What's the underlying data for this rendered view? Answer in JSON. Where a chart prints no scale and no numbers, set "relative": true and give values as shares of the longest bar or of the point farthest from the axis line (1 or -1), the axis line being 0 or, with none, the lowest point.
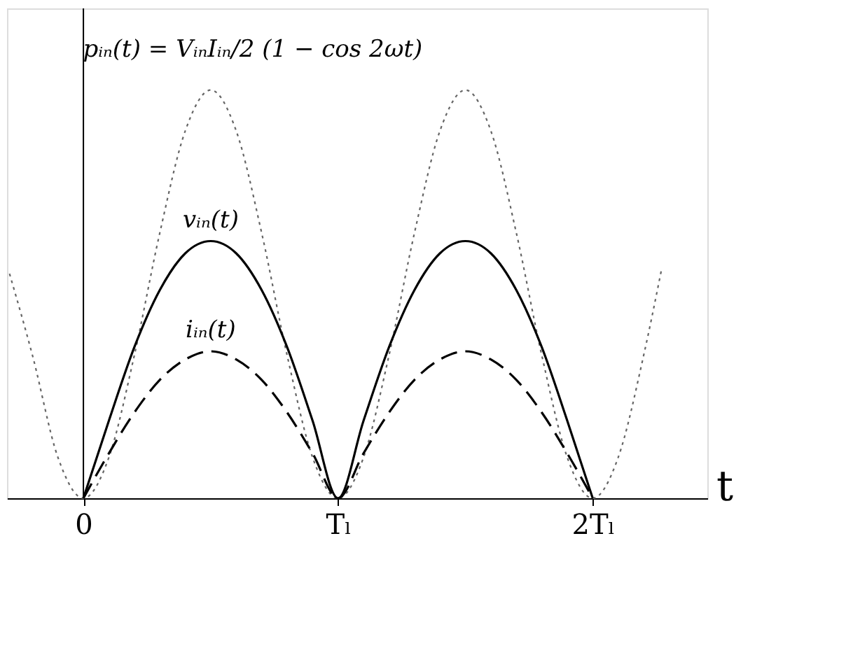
{
  "chart_data": {
    "type": "line",
    "relative": true,
    "xlabel": "t",
    "tick_labels": "x",
    "xlim": [
      -0.3,
      2.45
    ],
    "xticks": [
      0,
      {
        "value": 1,
        "label": "Tₗ"
      },
      {
        "value": 2,
        "label": "2Tₗ"
      }
    ],
    "ref_lines": [
      {
        "axis": "x",
        "value": 0,
        "label": null,
        "color": "#000000"
      }
    ],
    "series": [
      {
        "name": "pᵢₙ(t) = VᵢₙIᵢₙ/2 (1 − cos 2ωt)",
        "color": "#666666",
        "line_style": "dotted",
        "x": [
          -0.29,
          -0.2,
          -0.1,
          0,
          0.1,
          0.2,
          0.3,
          0.4,
          0.5,
          0.6,
          0.7,
          0.8,
          0.9,
          1,
          1.1,
          1.2,
          1.3,
          1.4,
          1.5,
          1.6,
          1.7,
          1.8,
          1.9,
          2,
          2.1,
          2.2,
          2.27
        ],
        "values": [
          0.55,
          0.35,
          0.1,
          0,
          0.1,
          0.35,
          0.65,
          0.9,
          1,
          0.9,
          0.65,
          0.35,
          0.1,
          0,
          0.1,
          0.35,
          0.65,
          0.9,
          1,
          0.9,
          0.65,
          0.35,
          0.1,
          0,
          0.1,
          0.35,
          0.56
        ]
      },
      {
        "name": "vᵢₙ(t)",
        "color": "#000000",
        "line_style": "solid",
        "x": [
          0,
          0.1,
          0.2,
          0.3,
          0.4,
          0.5,
          0.6,
          0.7,
          0.8,
          0.9,
          1,
          1.1,
          1.2,
          1.3,
          1.4,
          1.5,
          1.6,
          1.7,
          1.8,
          1.9,
          2
        ],
        "values": [
          0,
          0.19,
          0.37,
          0.51,
          0.6,
          0.63,
          0.6,
          0.51,
          0.37,
          0.19,
          0,
          0.19,
          0.37,
          0.51,
          0.6,
          0.63,
          0.6,
          0.51,
          0.37,
          0.19,
          0
        ]
      },
      {
        "name": "iᵢₙ(t)",
        "color": "#000000",
        "line_style": "dashed",
        "x": [
          0,
          0.1,
          0.2,
          0.3,
          0.4,
          0.5,
          0.6,
          0.7,
          0.8,
          0.9,
          1,
          1.1,
          1.2,
          1.3,
          1.4,
          1.5,
          1.6,
          1.7,
          1.8,
          1.9,
          2
        ],
        "values": [
          0,
          0.11,
          0.21,
          0.29,
          0.34,
          0.36,
          0.34,
          0.29,
          0.21,
          0.11,
          0,
          0.11,
          0.21,
          0.29,
          0.34,
          0.36,
          0.34,
          0.29,
          0.21,
          0.11,
          0
        ]
      }
    ]
  }
}
